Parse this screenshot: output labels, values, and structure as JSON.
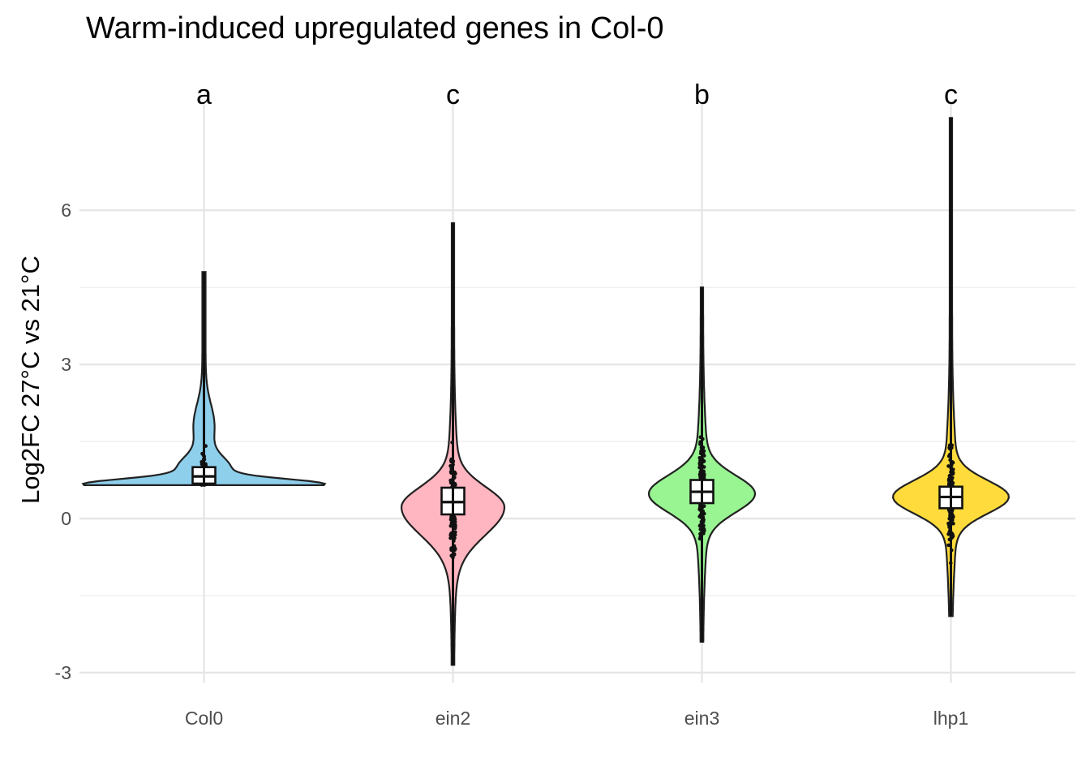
{
  "chart_data": {
    "type": "violin",
    "title": "Warm-induced upregulated genes in Col-0",
    "xlabel": "",
    "ylabel": "Log2FC 27°C vs 21°C",
    "categories": [
      "Col0",
      "ein2",
      "ein3",
      "lhp1"
    ],
    "ylim": [
      -3.2,
      8.1
    ],
    "yticks": [
      -3,
      0,
      3,
      6
    ],
    "ytick_labels": [
      "-3",
      "0",
      "3",
      "6"
    ],
    "grid": true,
    "legend": "none",
    "significance_letters": [
      "a",
      "c",
      "b",
      "c"
    ],
    "series": [
      {
        "category": "Col0",
        "color": "#8ecfec",
        "min": 0.65,
        "max": 4.8,
        "box": {
          "q1": 0.68,
          "median": 0.82,
          "q3": 1.0
        },
        "density_peak": 0.66
      },
      {
        "category": "ein2",
        "color": "#ffb6c1",
        "min": -2.85,
        "max": 5.75,
        "box": {
          "q1": 0.08,
          "median": 0.32,
          "q3": 0.6
        },
        "density_peak": 0.22
      },
      {
        "category": "ein3",
        "color": "#98f592",
        "min": -2.4,
        "max": 4.5,
        "box": {
          "q1": 0.3,
          "median": 0.52,
          "q3": 0.75
        },
        "density_peak": 0.48
      },
      {
        "category": "lhp1",
        "color": "#ffdc3b",
        "min": -1.9,
        "max": 7.8,
        "box": {
          "q1": 0.2,
          "median": 0.42,
          "q3": 0.62
        },
        "density_peak": 0.42
      }
    ]
  }
}
